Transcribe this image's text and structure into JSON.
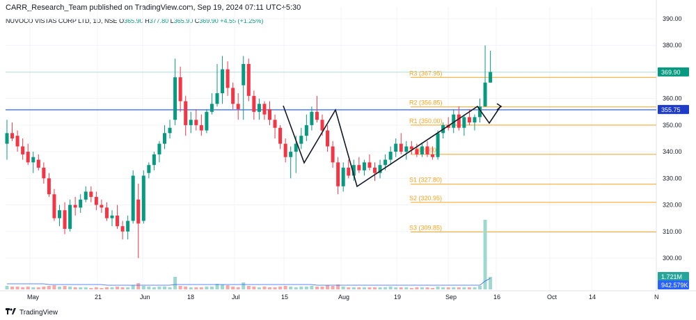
{
  "header": {
    "publisher": "CARR_Research_Team published on TradingView.com, Sep 19, 2024 07:11 UTC+5:30",
    "symbol": "NUVOCO VISTAS CORP LTD, 1D, NSE",
    "open_label": "O",
    "open": "365.90",
    "high_label": "H",
    "high": "377.80",
    "low_label": "L",
    "low": "365.90",
    "close_label": "C",
    "close": "369.90",
    "change": "+4.55 (+1.25%)"
  },
  "footer": {
    "brand": "TradingView",
    "logo_icon": "tradingview-logo-icon"
  },
  "colors": {
    "up": "#089981",
    "down": "#f23645",
    "pivot": "#f7a21b",
    "blue_line": "#2962ff",
    "volume_up": "#9fd8cf",
    "volume_down": "#f7a9a7"
  },
  "chart_data": {
    "type": "candlestick",
    "ylim": [
      295,
      392
    ],
    "y_ticks": [
      "390.00",
      "380.00",
      "370.00",
      "360.00",
      "350.00",
      "340.00",
      "330.00",
      "320.00",
      "310.00",
      "300.00"
    ],
    "x_ticks": [
      "May",
      "21",
      "Jun",
      "18",
      "Jul",
      "15",
      "Aug",
      "19",
      "Sep",
      "16",
      "Oct",
      "14",
      "N"
    ],
    "last_price_label": "369.90",
    "horizontal_line_label": "355.75",
    "horizontal_line_value": 355.75,
    "volume_label": "1.721M",
    "volume_ma_label": "942.579K",
    "pivots": [
      {
        "label": "R3 (367.95)",
        "value": 367.95
      },
      {
        "label": "R2 (356.85)",
        "value": 356.85
      },
      {
        "label": "R1 (350.00)",
        "value": 350.0
      },
      {
        "label": "P (339.00)",
        "value": 339.0
      },
      {
        "label": "S1 (327.80)",
        "value": 327.8
      },
      {
        "label": "S2 (320.95)",
        "value": 320.95
      },
      {
        "label": "S3 (309.85)",
        "value": 309.85
      }
    ],
    "candles": [
      {
        "o": 343,
        "h": 352,
        "l": 337,
        "c": 347
      },
      {
        "o": 347,
        "h": 351,
        "l": 344,
        "c": 345
      },
      {
        "o": 346,
        "h": 348,
        "l": 340,
        "c": 342
      },
      {
        "o": 342,
        "h": 345,
        "l": 337,
        "c": 339
      },
      {
        "o": 340,
        "h": 343,
        "l": 335,
        "c": 336
      },
      {
        "o": 336,
        "h": 340,
        "l": 332,
        "c": 338
      },
      {
        "o": 337,
        "h": 339,
        "l": 333,
        "c": 334
      },
      {
        "o": 334,
        "h": 336,
        "l": 328,
        "c": 330
      },
      {
        "o": 330,
        "h": 332,
        "l": 323,
        "c": 324
      },
      {
        "o": 324,
        "h": 326,
        "l": 314,
        "c": 315
      },
      {
        "o": 315,
        "h": 320,
        "l": 312,
        "c": 318
      },
      {
        "o": 318,
        "h": 321,
        "l": 309,
        "c": 311
      },
      {
        "o": 311,
        "h": 322,
        "l": 310,
        "c": 320
      },
      {
        "o": 320,
        "h": 323,
        "l": 316,
        "c": 319
      },
      {
        "o": 319,
        "h": 324,
        "l": 317,
        "c": 322
      },
      {
        "o": 322,
        "h": 327,
        "l": 321,
        "c": 325
      },
      {
        "o": 325,
        "h": 327,
        "l": 321,
        "c": 323
      },
      {
        "o": 323,
        "h": 325,
        "l": 318,
        "c": 320
      },
      {
        "o": 320,
        "h": 322,
        "l": 317,
        "c": 319
      },
      {
        "o": 319,
        "h": 321,
        "l": 314,
        "c": 315
      },
      {
        "o": 315,
        "h": 318,
        "l": 312,
        "c": 316
      },
      {
        "o": 316,
        "h": 320,
        "l": 311,
        "c": 312
      },
      {
        "o": 312,
        "h": 314,
        "l": 307,
        "c": 310
      },
      {
        "o": 310,
        "h": 316,
        "l": 307,
        "c": 314
      },
      {
        "o": 314,
        "h": 333,
        "l": 313,
        "c": 331
      },
      {
        "o": 322,
        "h": 328,
        "l": 300,
        "c": 313
      },
      {
        "o": 314,
        "h": 333,
        "l": 313,
        "c": 331
      },
      {
        "o": 332,
        "h": 336,
        "l": 330,
        "c": 335
      },
      {
        "o": 335,
        "h": 340,
        "l": 333,
        "c": 339
      },
      {
        "o": 339,
        "h": 344,
        "l": 336,
        "c": 343
      },
      {
        "o": 343,
        "h": 350,
        "l": 341,
        "c": 347
      },
      {
        "o": 347,
        "h": 352,
        "l": 345,
        "c": 349
      },
      {
        "o": 352,
        "h": 375,
        "l": 350,
        "c": 368
      },
      {
        "o": 368,
        "h": 372,
        "l": 355,
        "c": 359
      },
      {
        "o": 359,
        "h": 361,
        "l": 346,
        "c": 350
      },
      {
        "o": 350,
        "h": 355,
        "l": 347,
        "c": 352
      },
      {
        "o": 352,
        "h": 356,
        "l": 348,
        "c": 350
      },
      {
        "o": 350,
        "h": 354,
        "l": 346,
        "c": 348
      },
      {
        "o": 348,
        "h": 356,
        "l": 347,
        "c": 355
      },
      {
        "o": 355,
        "h": 362,
        "l": 354,
        "c": 358
      },
      {
        "o": 358,
        "h": 373,
        "l": 357,
        "c": 362
      },
      {
        "o": 362,
        "h": 376,
        "l": 358,
        "c": 371
      },
      {
        "o": 371,
        "h": 374,
        "l": 361,
        "c": 364
      },
      {
        "o": 364,
        "h": 366,
        "l": 356,
        "c": 358
      },
      {
        "o": 358,
        "h": 362,
        "l": 352,
        "c": 356
      },
      {
        "o": 365,
        "h": 376,
        "l": 352,
        "c": 373
      },
      {
        "o": 373,
        "h": 375,
        "l": 359,
        "c": 361
      },
      {
        "o": 361,
        "h": 363,
        "l": 352,
        "c": 355
      },
      {
        "o": 355,
        "h": 360,
        "l": 352,
        "c": 358
      },
      {
        "o": 358,
        "h": 359,
        "l": 352,
        "c": 354
      },
      {
        "o": 356,
        "h": 359,
        "l": 350,
        "c": 352
      },
      {
        "o": 352,
        "h": 354,
        "l": 345,
        "c": 349
      },
      {
        "o": 349,
        "h": 350,
        "l": 341,
        "c": 343
      },
      {
        "o": 343,
        "h": 345,
        "l": 336,
        "c": 338
      },
      {
        "o": 338,
        "h": 342,
        "l": 330,
        "c": 340
      },
      {
        "o": 340,
        "h": 346,
        "l": 332,
        "c": 343
      },
      {
        "o": 343,
        "h": 349,
        "l": 341,
        "c": 346
      },
      {
        "o": 346,
        "h": 354,
        "l": 344,
        "c": 350
      },
      {
        "o": 350,
        "h": 357,
        "l": 348,
        "c": 355
      },
      {
        "o": 355,
        "h": 361,
        "l": 351,
        "c": 352
      },
      {
        "o": 352,
        "h": 354,
        "l": 346,
        "c": 348
      },
      {
        "o": 348,
        "h": 350,
        "l": 340,
        "c": 342
      },
      {
        "o": 342,
        "h": 344,
        "l": 334,
        "c": 336
      },
      {
        "o": 336,
        "h": 338,
        "l": 324,
        "c": 327
      },
      {
        "o": 327,
        "h": 336,
        "l": 325,
        "c": 334
      },
      {
        "o": 334,
        "h": 337,
        "l": 330,
        "c": 331
      },
      {
        "o": 331,
        "h": 337,
        "l": 329,
        "c": 335
      },
      {
        "o": 335,
        "h": 338,
        "l": 332,
        "c": 333
      },
      {
        "o": 333,
        "h": 337,
        "l": 331,
        "c": 336
      },
      {
        "o": 336,
        "h": 339,
        "l": 333,
        "c": 334
      },
      {
        "o": 334,
        "h": 336,
        "l": 329,
        "c": 332
      },
      {
        "o": 332,
        "h": 337,
        "l": 330,
        "c": 335
      },
      {
        "o": 335,
        "h": 339,
        "l": 333,
        "c": 337
      },
      {
        "o": 337,
        "h": 342,
        "l": 335,
        "c": 340
      },
      {
        "o": 340,
        "h": 345,
        "l": 338,
        "c": 343
      },
      {
        "o": 343,
        "h": 347,
        "l": 339,
        "c": 340
      },
      {
        "o": 340,
        "h": 344,
        "l": 337,
        "c": 342
      },
      {
        "o": 342,
        "h": 344,
        "l": 339,
        "c": 341
      },
      {
        "o": 341,
        "h": 343,
        "l": 338,
        "c": 339
      },
      {
        "o": 339,
        "h": 343,
        "l": 338,
        "c": 342
      },
      {
        "o": 342,
        "h": 344,
        "l": 338,
        "c": 339
      },
      {
        "o": 339,
        "h": 342,
        "l": 337,
        "c": 338
      },
      {
        "o": 338,
        "h": 348,
        "l": 337,
        "c": 347
      },
      {
        "o": 347,
        "h": 351,
        "l": 345,
        "c": 350
      },
      {
        "o": 350,
        "h": 353,
        "l": 348,
        "c": 349
      },
      {
        "o": 349,
        "h": 356,
        "l": 347,
        "c": 354
      },
      {
        "o": 354,
        "h": 357,
        "l": 348,
        "c": 349
      },
      {
        "o": 349,
        "h": 354,
        "l": 346,
        "c": 353
      },
      {
        "o": 353,
        "h": 356,
        "l": 350,
        "c": 351
      },
      {
        "o": 351,
        "h": 354,
        "l": 348,
        "c": 353
      },
      {
        "o": 353,
        "h": 360,
        "l": 351,
        "c": 357
      },
      {
        "o": 357,
        "h": 380,
        "l": 357,
        "c": 366
      },
      {
        "o": 366,
        "h": 378,
        "l": 366,
        "c": 370
      }
    ],
    "volume": [
      5,
      4,
      4,
      3,
      4,
      3,
      3,
      4,
      5,
      6,
      4,
      5,
      4,
      3,
      3,
      3,
      2,
      3,
      2,
      3,
      3,
      4,
      3,
      3,
      6,
      9,
      5,
      4,
      3,
      4,
      4,
      3,
      18,
      5,
      4,
      3,
      3,
      3,
      4,
      4,
      8,
      7,
      6,
      4,
      3,
      10,
      5,
      4,
      3,
      4,
      3,
      3,
      4,
      5,
      4,
      3,
      4,
      4,
      5,
      4,
      4,
      6,
      5,
      7,
      4,
      3,
      3,
      3,
      3,
      3,
      3,
      3,
      3,
      4,
      3,
      3,
      3,
      2,
      3,
      3,
      3,
      2,
      4,
      3,
      3,
      3,
      3,
      3,
      3,
      3,
      5,
      100,
      18
    ],
    "volume_ma": [
      8,
      8,
      8,
      8,
      8,
      8,
      8,
      8,
      7,
      7,
      7,
      7,
      7,
      7,
      7,
      7,
      7,
      7,
      7,
      6,
      6,
      6,
      6,
      6,
      6,
      6,
      6,
      6,
      6,
      6,
      6,
      6,
      7,
      7,
      7,
      7,
      7,
      7,
      7,
      7,
      7,
      7,
      7,
      7,
      7,
      7,
      7,
      7,
      7,
      7,
      7,
      7,
      7,
      7,
      7,
      7,
      7,
      7,
      7,
      6,
      6,
      6,
      6,
      6,
      6,
      6,
      6,
      6,
      6,
      6,
      6,
      6,
      6,
      6,
      6,
      6,
      6,
      6,
      6,
      6,
      6,
      6,
      6,
      6,
      6,
      6,
      6,
      6,
      6,
      6,
      6,
      12,
      16
    ]
  }
}
